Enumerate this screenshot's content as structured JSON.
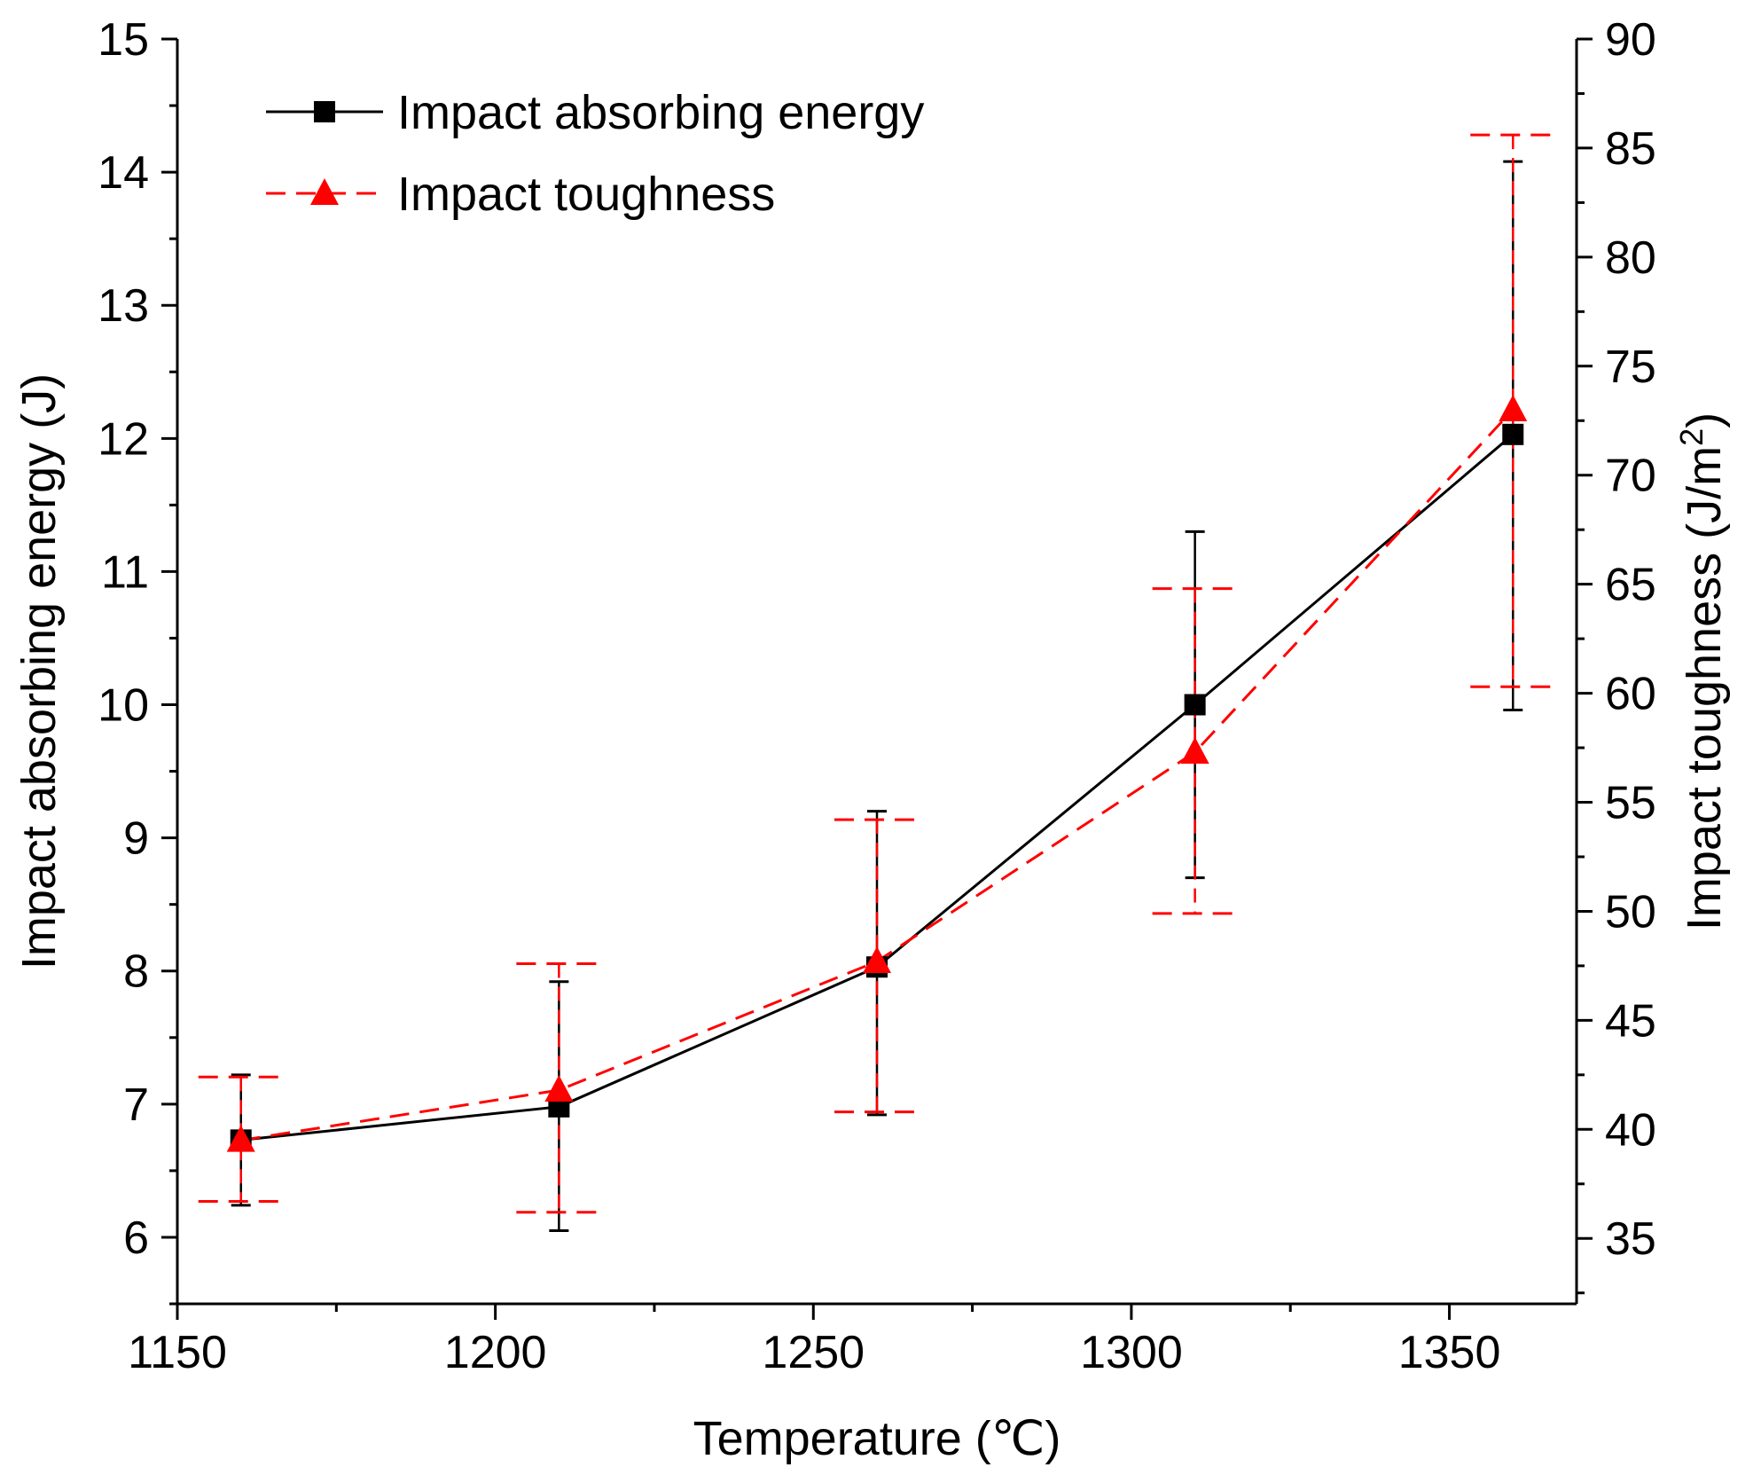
{
  "chart_data": {
    "type": "line",
    "title": "",
    "xlabel": "Temperature (℃)",
    "ylabel": "Impact absorbing energy (J)",
    "y2label": "Impact toughness (J/m²)",
    "y2label_parts": {
      "base": "Impact toughness (J/m",
      "sup": "2",
      "close": ")"
    },
    "xlim": [
      1150,
      1370
    ],
    "ylim": [
      5.5,
      15
    ],
    "y2lim": [
      32,
      90
    ],
    "x_ticks": [
      1150,
      1200,
      1250,
      1300,
      1350
    ],
    "x_minor_ticks": [
      1175,
      1225,
      1275,
      1325
    ],
    "y_ticks": [
      6,
      7,
      8,
      9,
      10,
      11,
      12,
      13,
      14,
      15
    ],
    "y2_ticks": [
      35,
      40,
      45,
      50,
      55,
      60,
      65,
      70,
      75,
      80,
      85,
      90
    ],
    "x": [
      1160,
      1210,
      1260,
      1310,
      1360
    ],
    "legend_position": "top-left",
    "series": [
      {
        "name": "Impact absorbing energy",
        "axis": "left",
        "color": "#000000",
        "line_style": "solid",
        "marker": "square",
        "values": [
          6.73,
          6.98,
          8.03,
          10.0,
          12.03
        ],
        "err_low": [
          6.24,
          6.05,
          6.92,
          8.7,
          9.96
        ],
        "err_high": [
          7.22,
          7.92,
          9.2,
          11.3,
          14.08
        ]
      },
      {
        "name": "Impact toughness",
        "axis": "right",
        "color": "#ff0000",
        "line_style": "dashed",
        "marker": "triangle",
        "values": [
          39.5,
          41.8,
          47.7,
          57.3,
          73.0
        ],
        "err_low": [
          36.7,
          36.2,
          40.8,
          49.9,
          60.3
        ],
        "err_high": [
          42.4,
          47.6,
          54.2,
          64.8,
          85.6
        ]
      }
    ]
  }
}
